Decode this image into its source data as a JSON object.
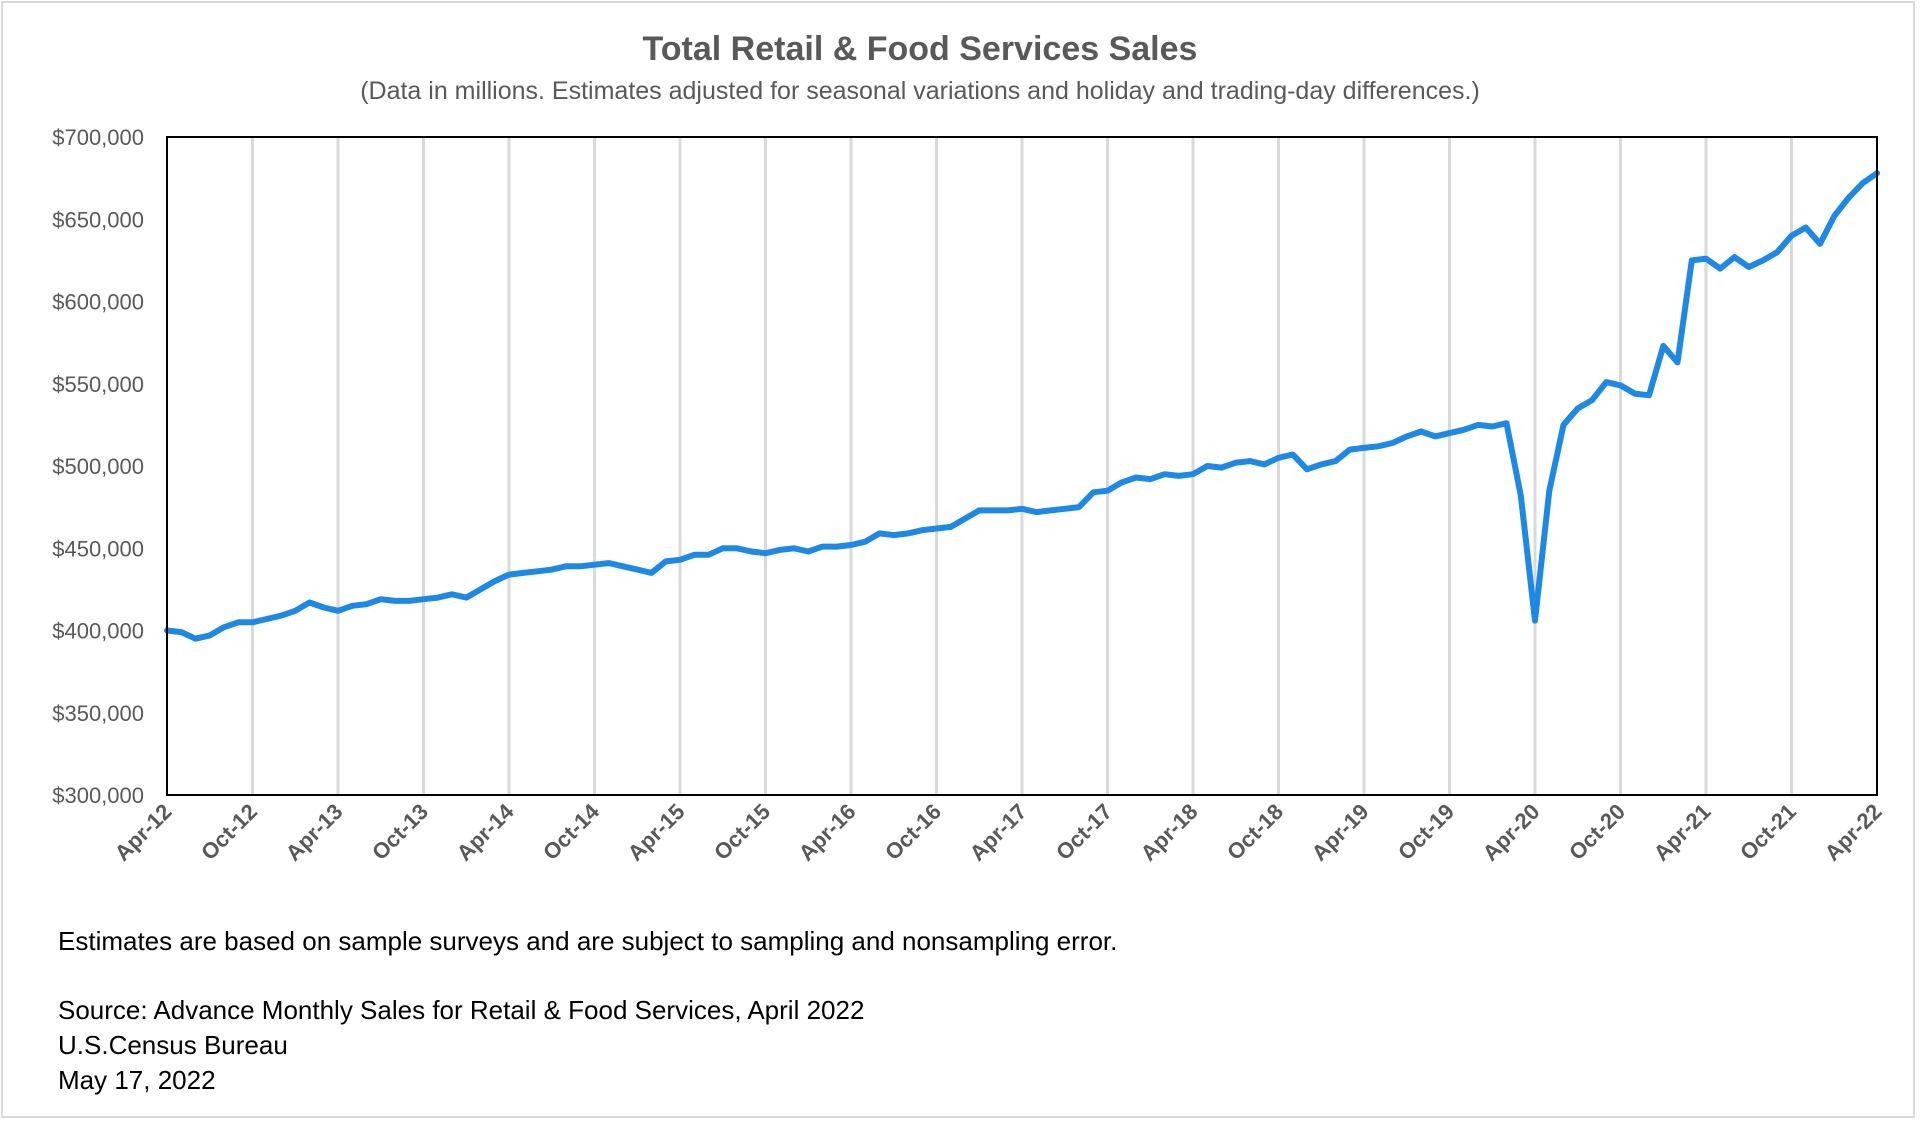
{
  "colors": {
    "line": "#1e88e5",
    "grid": "#d9d9d9",
    "axis_text": "#595959",
    "plot_border": "#000000"
  },
  "notes": {
    "disclaimer": "Estimates are based on sample surveys and are subject to sampling and nonsampling error.",
    "source": "Source: Advance Monthly Sales for Retail & Food Services, April 2022",
    "agency": "U.S.Census Bureau",
    "date": "May 17, 2022"
  },
  "chart_data": {
    "type": "line",
    "title": "Total Retail & Food Services Sales",
    "subtitle": "(Data in millions. Estimates adjusted for seasonal variations and holiday and trading-day differences.)",
    "ylim": [
      300000,
      700000
    ],
    "y_ticks": [
      300000,
      350000,
      400000,
      450000,
      500000,
      550000,
      600000,
      650000,
      700000
    ],
    "y_tick_labels": [
      "$300,000",
      "$350,000",
      "$400,000",
      "$450,000",
      "$500,000",
      "$550,000",
      "$600,000",
      "$650,000",
      "$700,000"
    ],
    "x_tick_labels": [
      "Apr-12",
      "Oct-12",
      "Apr-13",
      "Oct-13",
      "Apr-14",
      "Oct-14",
      "Apr-15",
      "Oct-15",
      "Apr-16",
      "Oct-16",
      "Apr-17",
      "Oct-17",
      "Apr-18",
      "Oct-18",
      "Apr-19",
      "Oct-19",
      "Apr-20",
      "Oct-20",
      "Apr-21",
      "Oct-21",
      "Apr-22"
    ],
    "grid": "vertical",
    "legend": "none",
    "x_start": "Apr-12",
    "x_end": "Apr-22",
    "series": [
      {
        "values": [
          400000,
          399000,
          395000,
          397000,
          402000,
          405000,
          405000,
          407000,
          409000,
          412000,
          417000,
          414000,
          412000,
          415000,
          416000,
          419000,
          418000,
          418000,
          419000,
          420000,
          422000,
          420000,
          425000,
          430000,
          434000,
          435000,
          436000,
          437000,
          439000,
          439000,
          440000,
          441000,
          439000,
          437000,
          435000,
          442000,
          443000,
          446000,
          446000,
          450000,
          450000,
          448000,
          447000,
          449000,
          450000,
          448000,
          451000,
          451000,
          452000,
          454000,
          459000,
          458000,
          459000,
          461000,
          462000,
          463000,
          468000,
          473000,
          473000,
          473000,
          474000,
          472000,
          473000,
          474000,
          475000,
          484000,
          485000,
          490000,
          493000,
          492000,
          495000,
          494000,
          495000,
          500000,
          499000,
          502000,
          503000,
          501000,
          505000,
          507000,
          498000,
          501000,
          503000,
          510000,
          511000,
          512000,
          514000,
          518000,
          521000,
          518000,
          520000,
          522000,
          525000,
          524000,
          526000,
          482000,
          406000,
          485000,
          525000,
          535000,
          540000,
          551000,
          549000,
          544000,
          543000,
          573000,
          563000,
          625000,
          626000,
          620000,
          627000,
          621000,
          625000,
          630000,
          640000,
          645000,
          635000,
          652000,
          663000,
          672000,
          678000
        ]
      }
    ]
  }
}
